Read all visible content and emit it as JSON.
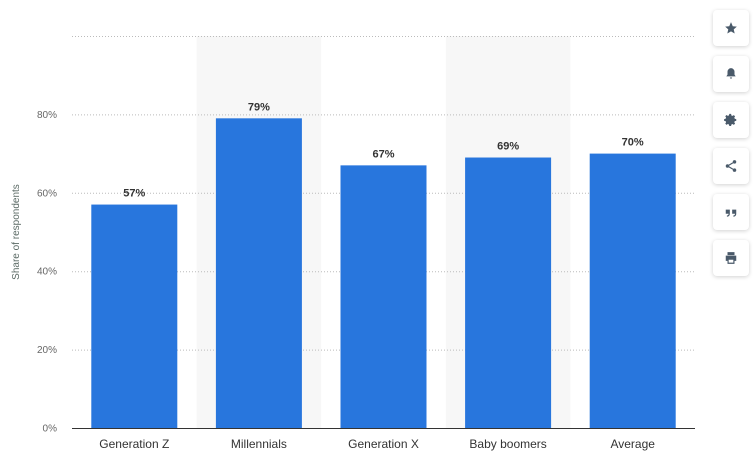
{
  "chart_data": {
    "type": "bar",
    "categories": [
      "Generation Z",
      "Millennials",
      "Generation X",
      "Baby boomers",
      "Average"
    ],
    "values": [
      57,
      79,
      67,
      69,
      70
    ],
    "value_labels": [
      "57%",
      "79%",
      "67%",
      "69%",
      "70%"
    ],
    "ylabel": "Share of respondents",
    "ylim": [
      0,
      100
    ],
    "yticks": [
      0,
      20,
      40,
      60,
      80
    ],
    "ytick_labels": [
      "0%",
      "20%",
      "40%",
      "60%",
      "80%"
    ],
    "grid": true,
    "bar_color": "#2876dd",
    "band_color": "#f7f7f7"
  },
  "toolbar": {
    "buttons": [
      {
        "name": "favorite-button",
        "icon": "star-icon"
      },
      {
        "name": "notification-button",
        "icon": "bell-icon"
      },
      {
        "name": "settings-button",
        "icon": "gear-icon"
      },
      {
        "name": "share-button",
        "icon": "share-icon"
      },
      {
        "name": "cite-button",
        "icon": "quote-icon"
      },
      {
        "name": "print-button",
        "icon": "print-icon"
      }
    ]
  }
}
